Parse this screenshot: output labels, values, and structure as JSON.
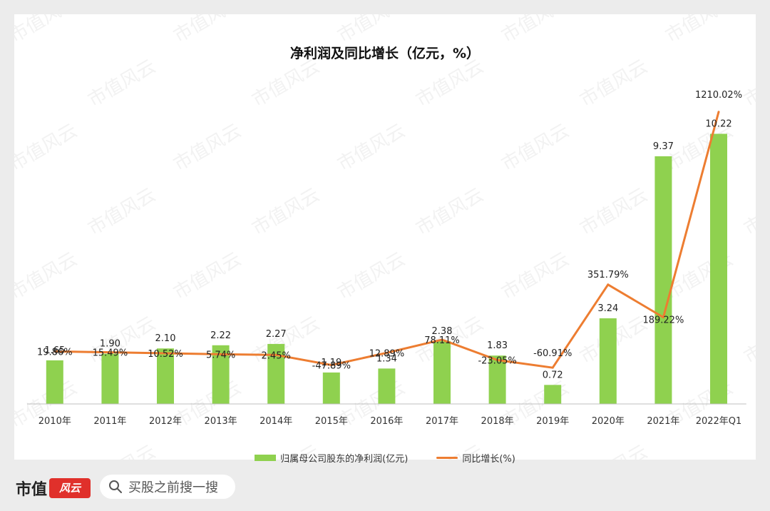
{
  "chart_data": {
    "type": "bar",
    "title": "净利润及同比增长（亿元，%）",
    "categories": [
      "2010年",
      "2011年",
      "2012年",
      "2013年",
      "2014年",
      "2015年",
      "2016年",
      "2017年",
      "2018年",
      "2019年",
      "2020年",
      "2021年",
      "2022年Q1"
    ],
    "series": [
      {
        "name": "归属母公司股东的净利润(亿元)",
        "type": "bar",
        "values": [
          1.65,
          1.9,
          2.1,
          2.22,
          2.27,
          1.19,
          1.34,
          2.38,
          1.83,
          0.72,
          3.24,
          9.37,
          10.22
        ],
        "labels": [
          "1.65",
          "1.90",
          "2.10",
          "2.22",
          "2.27",
          "1.19",
          "1.34",
          "2.38",
          "1.83",
          "0.72",
          "3.24",
          "9.37",
          "10.22"
        ]
      },
      {
        "name": "同比增长(%)",
        "type": "line",
        "values": [
          19.86,
          15.49,
          10.52,
          5.74,
          2.45,
          -47.89,
          12.89,
          78.11,
          -23.05,
          -60.91,
          351.79,
          189.22,
          1210.02
        ],
        "labels": [
          "19.86%",
          "15.49%",
          "10.52%",
          "5.74%",
          "2.45%",
          "-47.89%",
          "12.89%",
          "78.11%",
          "-23.05%",
          "-60.91%",
          "351.79%",
          "189.22%",
          "1210.02%"
        ]
      }
    ],
    "legend_position": "bottom",
    "grid": false,
    "colors": {
      "bar": "#8fd14f",
      "line": "#ed7d31"
    }
  },
  "watermark": "市值风云",
  "footer": {
    "brand": "市值",
    "brand_mark": "风云",
    "search_text": "买股之前搜一搜"
  },
  "theme": {
    "brand_red": "#e0302b"
  }
}
